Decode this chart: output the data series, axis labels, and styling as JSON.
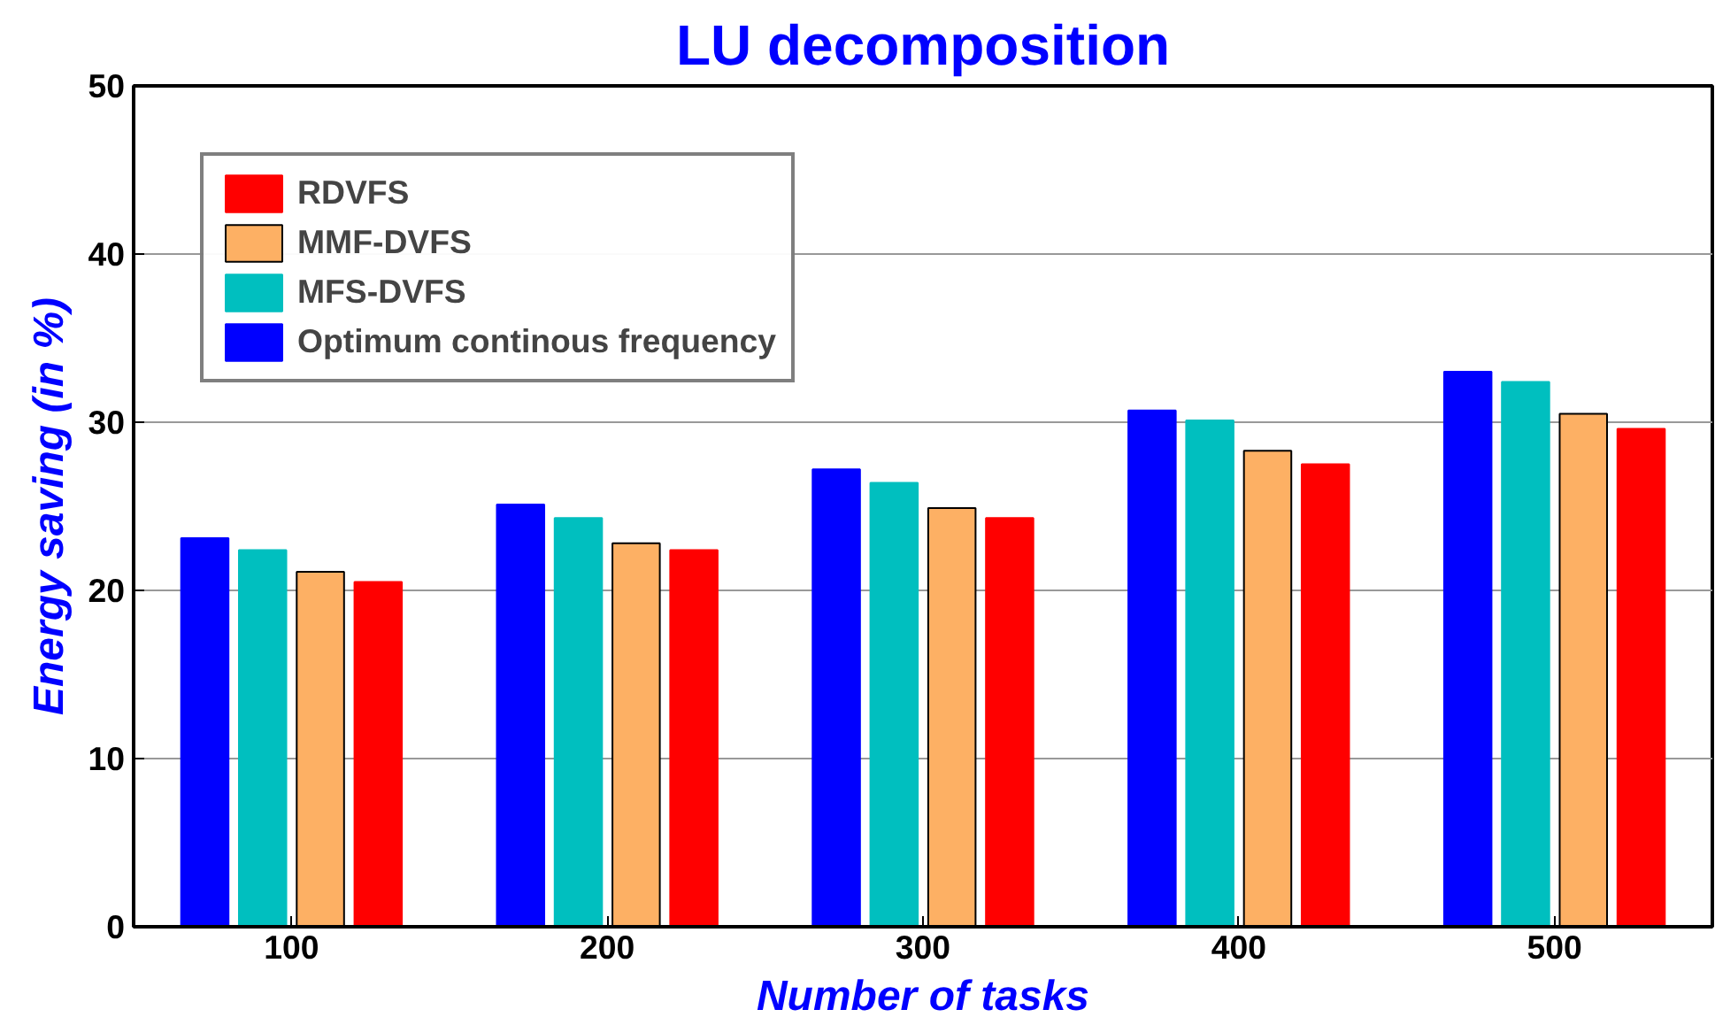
{
  "chart_data": {
    "type": "bar",
    "title": "LU decomposition",
    "xlabel": "Number of tasks",
    "ylabel": "Energy saving (in %)",
    "categories": [
      "100",
      "200",
      "300",
      "400",
      "500"
    ],
    "series": [
      {
        "name": "RDVFS",
        "color": "#ff0000",
        "values": [
          20.5,
          22.4,
          24.3,
          27.5,
          29.6
        ]
      },
      {
        "name": "MMF-DVFS",
        "color": "#fdb064",
        "values": [
          21.1,
          22.8,
          24.9,
          28.3,
          30.5
        ]
      },
      {
        "name": "MFS-DVFS",
        "color": "#00bfbf",
        "values": [
          22.4,
          24.3,
          26.4,
          30.1,
          32.4
        ]
      },
      {
        "name": "Optimum continous frequency",
        "color": "#0000ff",
        "values": [
          23.1,
          25.1,
          27.2,
          30.7,
          33.0
        ]
      }
    ],
    "ylim": [
      0,
      50
    ],
    "yticks": [
      0,
      10,
      20,
      30,
      40,
      50
    ],
    "grid": "y",
    "legend": "top left"
  }
}
